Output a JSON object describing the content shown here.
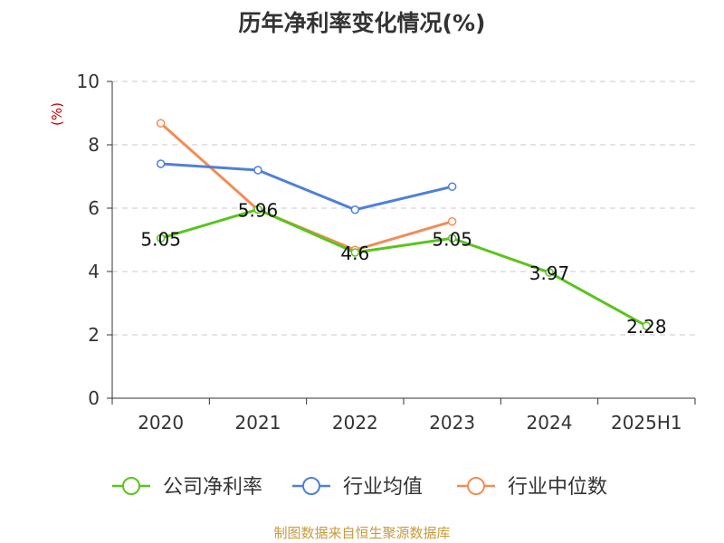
{
  "chart_data": {
    "type": "line",
    "title": "历年净利率变化情况(%)",
    "ylabel": "(%)",
    "xlabel": "",
    "categories": [
      "2020",
      "2021",
      "2022",
      "2023",
      "2024",
      "2025H1"
    ],
    "ylim": [
      0,
      10
    ],
    "yticks": [
      0,
      2,
      4,
      6,
      8,
      10
    ],
    "grid": true,
    "legend_position": "bottom",
    "series": [
      {
        "name": "公司净利率",
        "color": "#5ac41e",
        "values": [
          5.05,
          5.96,
          4.6,
          5.05,
          3.97,
          2.28
        ],
        "labels": [
          "5.05",
          "5.96",
          "4.6",
          "5.05",
          "3.97",
          "2.28"
        ]
      },
      {
        "name": "行业均值",
        "color": "#4f80d8",
        "values": [
          7.4,
          7.2,
          5.95,
          6.68,
          null,
          null
        ]
      },
      {
        "name": "行业中位数",
        "color": "#f28c55",
        "values": [
          8.68,
          5.95,
          4.68,
          5.58,
          null,
          null
        ]
      }
    ]
  },
  "footer": {
    "source": "制图数据来自恒生聚源数据库"
  },
  "colors": {
    "grid": "#c8c8c8",
    "axis": "#333333",
    "ylabel": "#cc0000",
    "source": "#c89a3c"
  }
}
